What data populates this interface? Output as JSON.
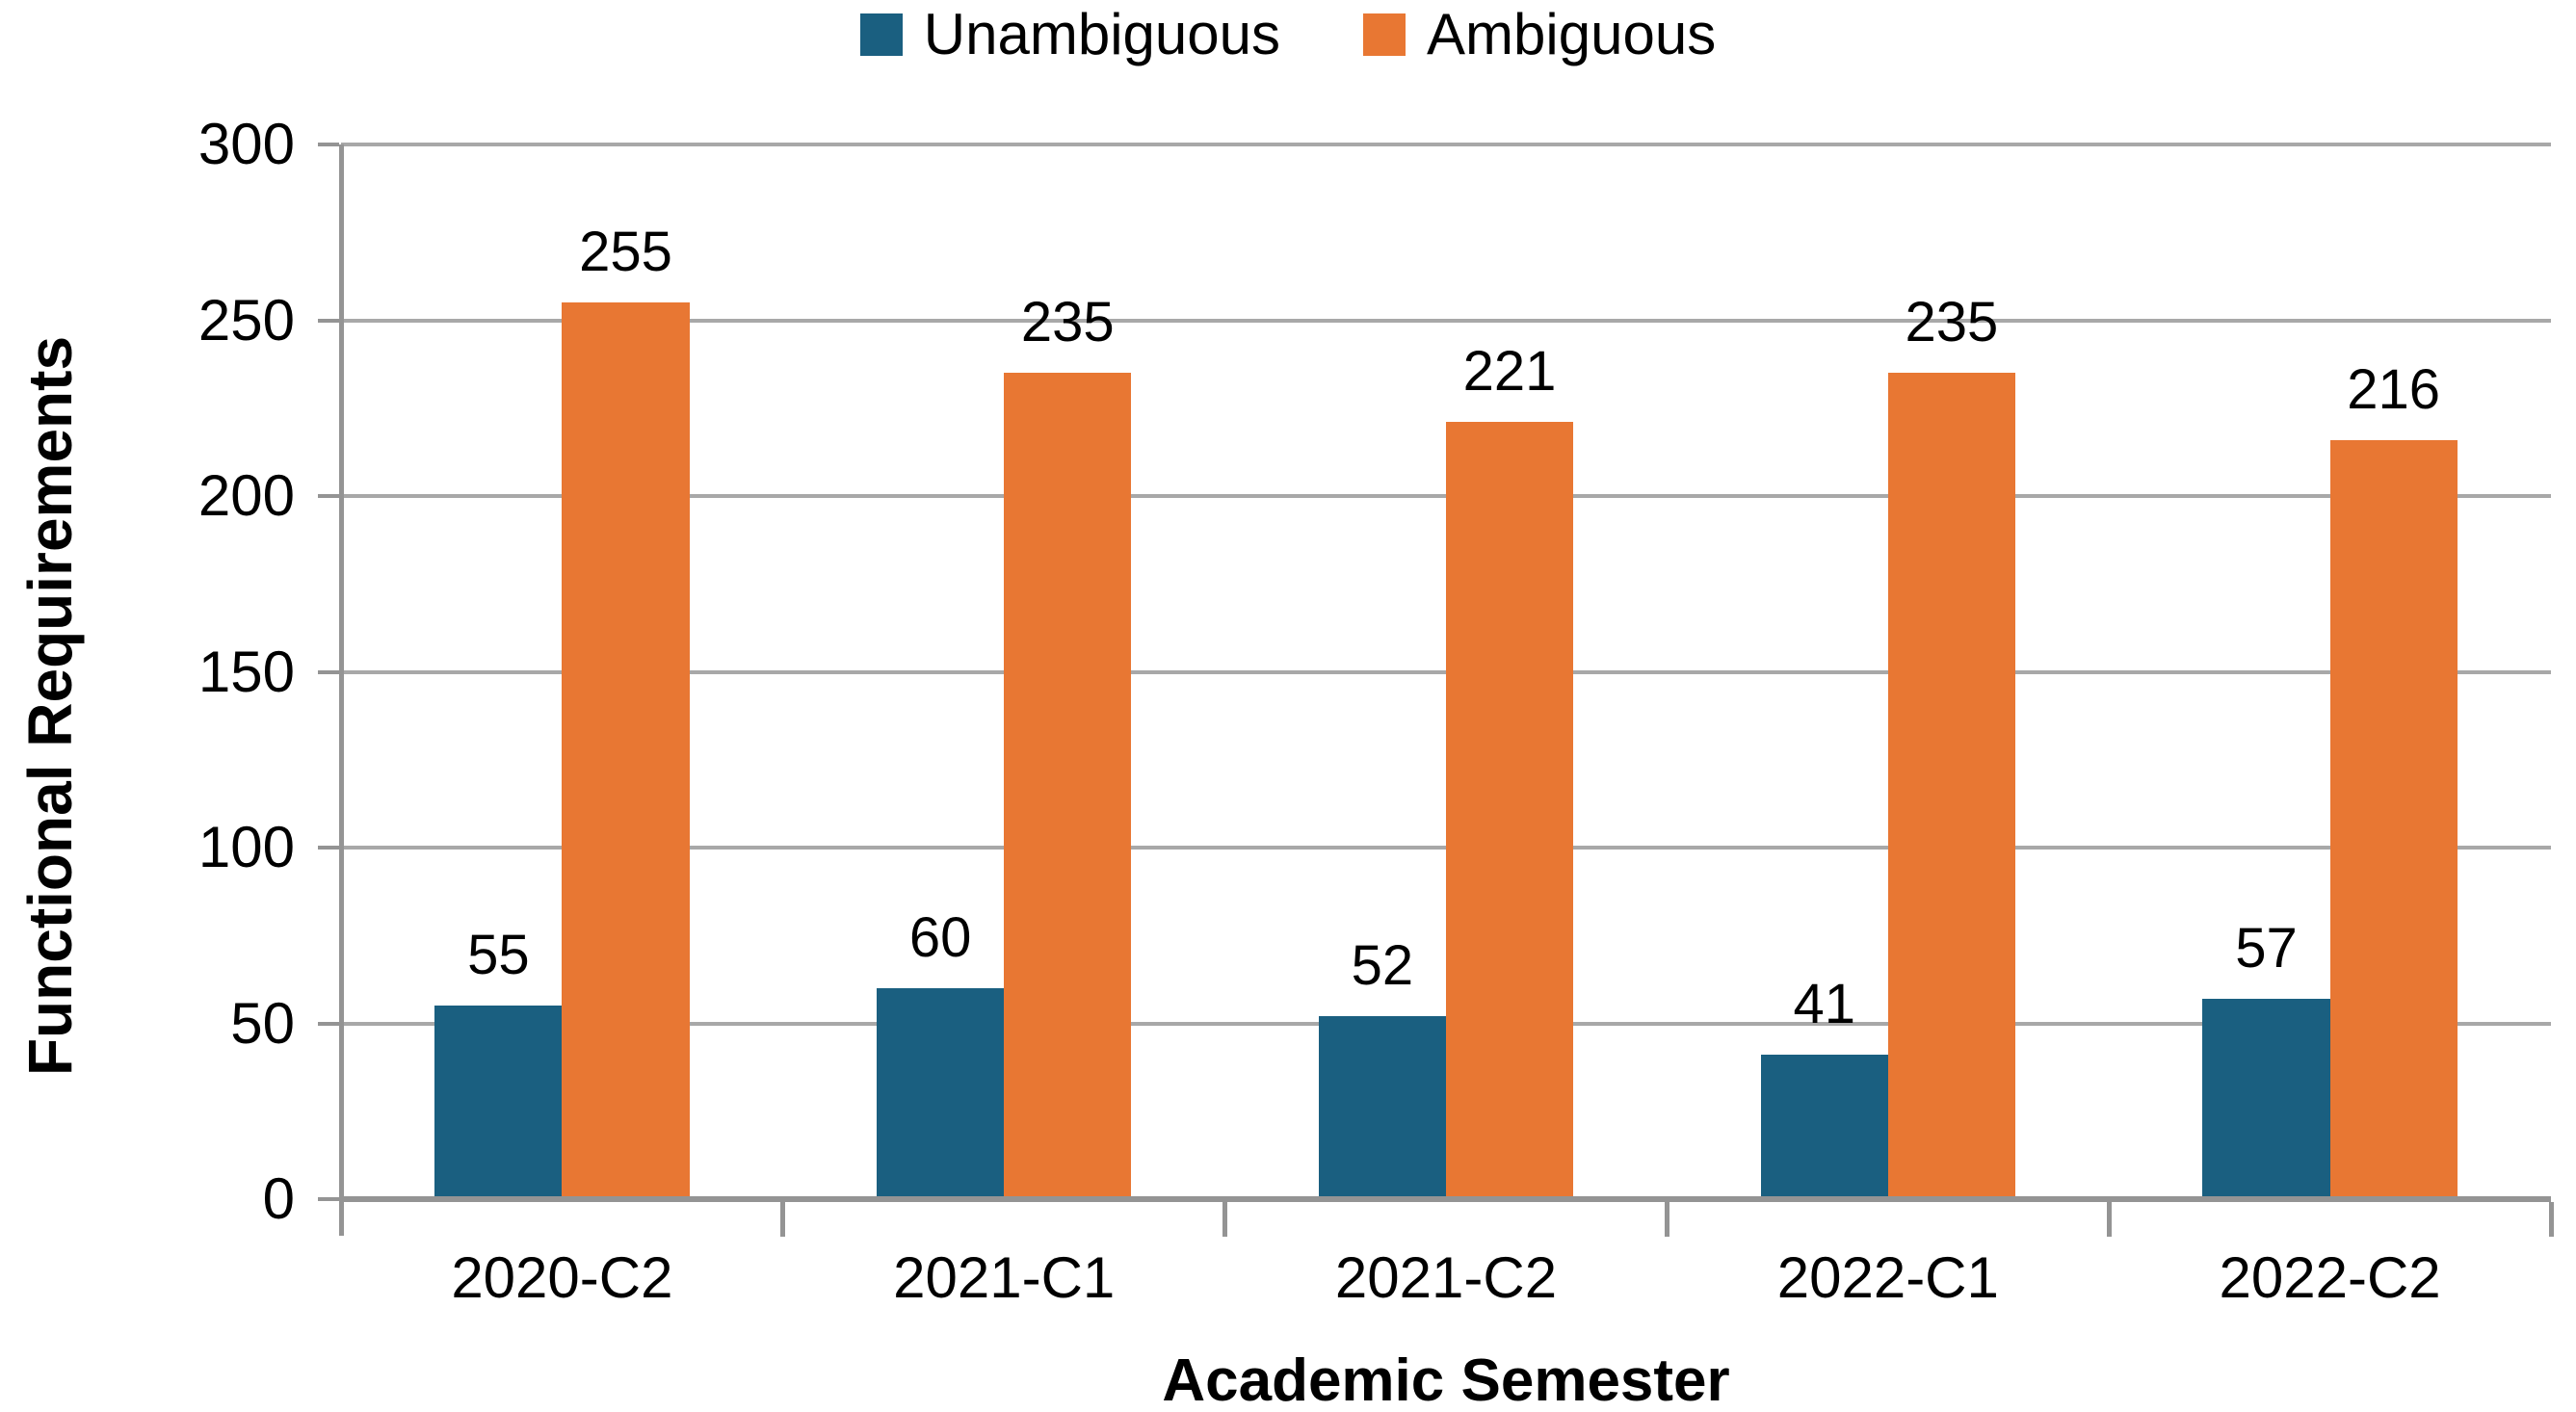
{
  "legend": {
    "items": [
      {
        "label": "Unambiguous",
        "color": "#1A5F80"
      },
      {
        "label": "Ambiguous",
        "color": "#E87733"
      }
    ]
  },
  "y_axis": {
    "title": "Functional Requirements",
    "tick_labels": [
      "0",
      "50",
      "100",
      "150",
      "200",
      "250",
      "300"
    ]
  },
  "x_axis": {
    "title": "Academic Semester"
  },
  "chart_data": {
    "type": "bar",
    "categories": [
      "2020-C2",
      "2021-C1",
      "2021-C2",
      "2022-C1",
      "2022-C2"
    ],
    "series": [
      {
        "name": "Unambiguous",
        "color": "#1A5F80",
        "values": [
          55,
          60,
          52,
          41,
          57
        ]
      },
      {
        "name": "Ambiguous",
        "color": "#E87733",
        "values": [
          255,
          235,
          221,
          235,
          216
        ]
      }
    ],
    "title": "",
    "xlabel": "Academic Semester",
    "ylabel": "Functional Requirements",
    "ylim": [
      0,
      300
    ],
    "ytick_step": 50,
    "grid": true,
    "grid_color": "#A8A8A8",
    "axis_color": "#949494",
    "data_labels": true,
    "legend_position": "top-center"
  }
}
